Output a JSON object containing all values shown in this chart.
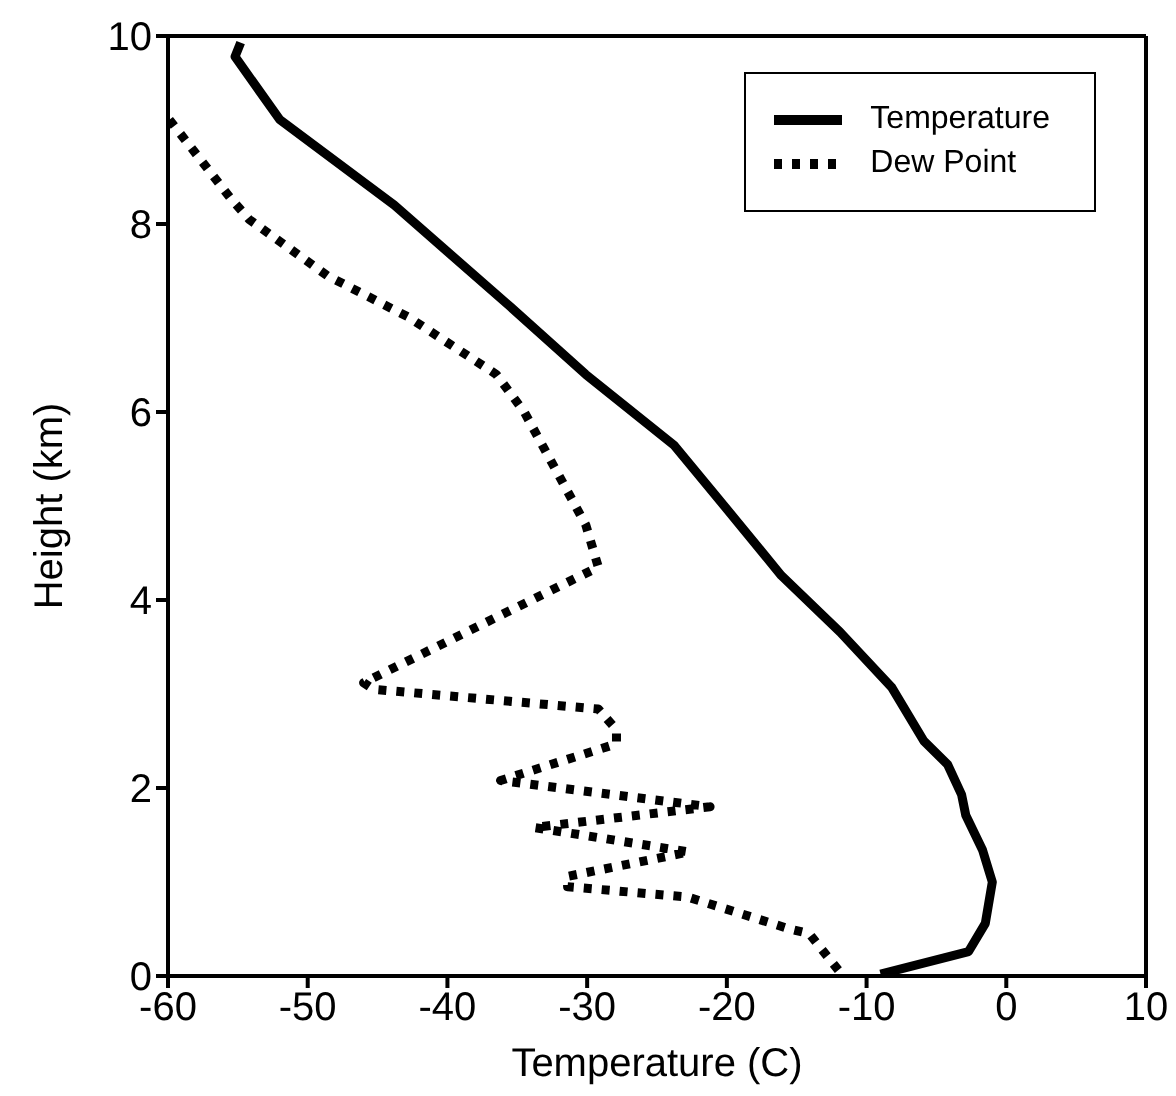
{
  "chart_data": {
    "type": "line",
    "xlabel": "Temperature (C)",
    "ylabel": "Height (km)",
    "xlim": [
      -60,
      10
    ],
    "xticks": [
      -60,
      -50,
      -40,
      -30,
      -20,
      -10,
      0,
      10
    ],
    "ylim": [
      0,
      10
    ],
    "yticks": [
      0,
      2,
      4,
      6,
      8,
      10
    ],
    "legend": "top right",
    "marker": "none",
    "series": [
      {
        "name": "Temperature",
        "color": "#000000",
        "line_style": "solid",
        "x": [
          -54.8,
          -55.2,
          -52.0,
          -43.8,
          -35.5,
          -30.1,
          -23.8,
          -20.9,
          -16.1,
          -11.9,
          -8.2,
          -5.9,
          -4.2,
          -3.2,
          -2.9,
          -1.7,
          -1.0,
          -1.5,
          -2.7,
          -9.0
        ],
        "values": [
          9.93,
          9.78,
          9.11,
          8.2,
          7.12,
          6.4,
          5.65,
          5.13,
          4.26,
          3.66,
          3.07,
          2.5,
          2.25,
          1.93,
          1.71,
          1.34,
          1.0,
          0.56,
          0.26,
          0.02
        ]
      },
      {
        "name": "Dew Point",
        "color": "#000000",
        "line_style": "dotted",
        "x": [
          -59.9,
          -55.5,
          -54.2,
          -48.6,
          -42.8,
          -36.5,
          -34.5,
          -30.1,
          -29.2,
          -46.0,
          -45.3,
          -29.2,
          -27.9,
          -27.9,
          -36.2,
          -21.2,
          -33.8,
          -22.7,
          -31.4,
          -31.4,
          -22.8,
          -15.5,
          -14.1,
          -11.9
        ],
        "values": [
          9.11,
          8.27,
          8.05,
          7.45,
          7.01,
          6.4,
          6.0,
          4.8,
          4.35,
          3.12,
          3.05,
          2.84,
          2.62,
          2.47,
          2.08,
          1.8,
          1.58,
          1.32,
          1.06,
          0.95,
          0.84,
          0.5,
          0.45,
          0.04
        ]
      }
    ]
  }
}
